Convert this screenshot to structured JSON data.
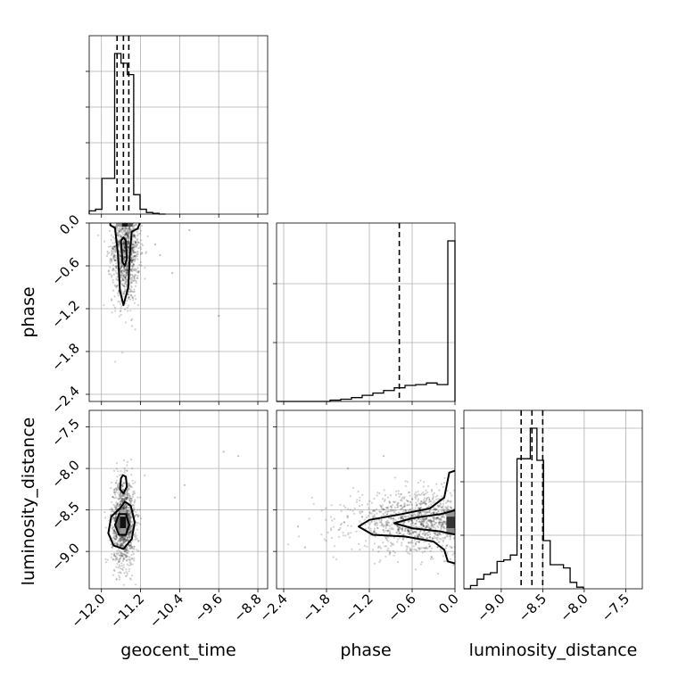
{
  "chart_data": {
    "type": "corner",
    "parameters": [
      "geocent_time",
      "phase",
      "luminosity_distance"
    ],
    "axis_labels": {
      "geocent_time": "geocent_time",
      "phase": "phase",
      "luminosity_distance": "luminosity_distance"
    },
    "ranges": {
      "geocent_time": [
        -12.25,
        -8.6
      ],
      "phase": [
        -2.5,
        0.0
      ],
      "luminosity_distance": [
        -9.45,
        -7.3
      ]
    },
    "ticks": {
      "geocent_time": [
        -12.0,
        -11.2,
        -10.4,
        -9.6,
        -8.8
      ],
      "phase": [
        -2.4,
        -1.8,
        -1.2,
        -0.6,
        0.0
      ],
      "luminosity_distance": [
        -9.0,
        -8.5,
        -8.0,
        -7.5
      ]
    },
    "tick_labels": {
      "geocent_time": [
        "−12.0",
        "−11.2",
        "−10.4",
        "−9.6",
        "−8.8"
      ],
      "phase": [
        "−2.4",
        "−1.8",
        "−1.2",
        "−0.6",
        "0.0"
      ],
      "luminosity_distance": [
        "−9.0",
        "−8.5",
        "−8.0",
        "−7.5"
      ]
    },
    "quantiles": {
      "geocent_time": [
        -11.68,
        -11.55,
        -11.44
      ],
      "phase": [
        -0.78
      ],
      "luminosity_distance": [
        -8.76,
        -8.63,
        -8.5
      ]
    },
    "histograms": {
      "geocent_time": {
        "edges": [
          -12.25,
          -12.12,
          -11.99,
          -11.86,
          -11.73,
          -11.6,
          -11.47,
          -11.34,
          -11.21,
          -11.08,
          -10.95,
          -10.82,
          -10.69
        ],
        "counts": [
          0.02,
          0.03,
          0.22,
          0.22,
          0.99,
          0.93,
          0.86,
          0.12,
          0.03,
          0.01,
          0.005,
          0.0
        ]
      },
      "phase": {
        "edges": [
          -2.5,
          -2.25,
          -2.0,
          -1.75,
          -1.6,
          -1.45,
          -1.3,
          -1.15,
          -1.0,
          -0.85,
          -0.7,
          -0.55,
          -0.4,
          -0.25,
          -0.1,
          0.0
        ],
        "counts": [
          0.0,
          0.0,
          0.0,
          0.008,
          0.014,
          0.024,
          0.038,
          0.052,
          0.068,
          0.085,
          0.1,
          0.105,
          0.115,
          0.105,
          1.0
        ]
      },
      "luminosity_distance": {
        "edges": [
          -9.45,
          -9.37,
          -9.29,
          -9.21,
          -9.13,
          -9.05,
          -8.97,
          -8.89,
          -8.81,
          -8.73,
          -8.65,
          -8.57,
          -8.49,
          -8.41,
          -8.33,
          -8.25,
          -8.17,
          -8.09,
          -8.01
        ],
        "counts": [
          0.0,
          0.02,
          0.06,
          0.09,
          0.1,
          0.17,
          0.18,
          0.21,
          0.81,
          0.81,
          1.0,
          0.8,
          0.3,
          0.15,
          0.15,
          0.13,
          0.04,
          0.01
        ]
      }
    },
    "scatter": {
      "geocent_time_vs_phase": {
        "n": 1300,
        "center": [
          -11.5,
          -0.35
        ],
        "spread": [
          0.14,
          0.38
        ],
        "outliers": [
          [
            -10.2,
            -0.1
          ],
          [
            -9.6,
            -1.3
          ],
          [
            -10.8,
            -0.45
          ],
          [
            -10.55,
            -0.7
          ],
          [
            -10.9,
            -0.3
          ]
        ]
      },
      "geocent_time_vs_luminosity_distance": {
        "n": 1200,
        "center": [
          -11.55,
          -8.65
        ],
        "spread": [
          0.12,
          0.26
        ],
        "outliers": [
          [
            -9.5,
            -7.8
          ],
          [
            -9.2,
            -7.85
          ],
          [
            -10.3,
            -8.2
          ],
          [
            -10.5,
            -8.35
          ]
        ]
      },
      "phase_vs_luminosity_distance": {
        "n": 1600,
        "center": [
          -0.35,
          -8.65
        ],
        "spread": [
          0.55,
          0.18
        ],
        "outliers": [
          [
            -1.5,
            -8.0
          ],
          [
            -2.1,
            -8.95
          ],
          [
            -2.2,
            -8.7
          ],
          [
            -1.0,
            -7.85
          ]
        ]
      }
    },
    "contour_style": "black 1-2 sigma contours with density-shaded cores",
    "grid": true
  }
}
